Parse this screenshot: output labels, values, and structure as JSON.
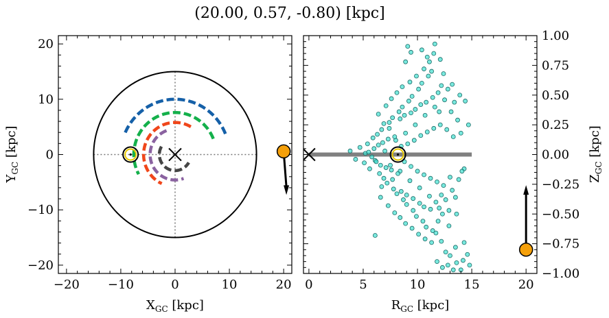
{
  "figure": {
    "title": "(20.00, 0.57, -0.80) [kpc]"
  },
  "chart_data": [
    {
      "type": "scatter",
      "panel": "left",
      "xlabel": "X",
      "xlabel_sub": "GC",
      "xlabel_unit": " [kpc]",
      "ylabel": "Y",
      "ylabel_sub": "GC",
      "ylabel_unit": " [kpc]",
      "xlim": [
        -21.5,
        21.5
      ],
      "ylim": [
        -21.5,
        21.5
      ],
      "xticks": [
        -20,
        -10,
        0,
        10,
        20
      ],
      "yticks": [
        -20,
        -10,
        0,
        10,
        20
      ],
      "xtick_labels": [
        "−20",
        "−10",
        "0",
        "10",
        "20"
      ],
      "ytick_labels": [
        "−20",
        "−10",
        "0",
        "10",
        "20"
      ],
      "galaxy_disk_radius": 15,
      "galactic_center": [
        0,
        0
      ],
      "sun_position": [
        -8.2,
        0
      ],
      "target": {
        "x": 20.0,
        "y": 0.57,
        "color": "#f5a00a"
      },
      "target_arrow": {
        "from": [
          20.0,
          0.57
        ],
        "to": [
          20.5,
          -6.8
        ]
      },
      "spiral_arms": [
        {
          "color": "#1560a8",
          "radius": 10.0,
          "start_deg": 22,
          "end_deg": 158
        },
        {
          "color": "#14b04b",
          "radius": 7.6,
          "start_deg": 22,
          "end_deg": 208
        },
        {
          "color": "#f0461a",
          "radius": 5.8,
          "start_deg": 60,
          "end_deg": 245
        },
        {
          "color": "#8a62a0",
          "radius": 4.6,
          "start_deg": 110,
          "end_deg": 290
        },
        {
          "color": "#454545",
          "radius": 2.9,
          "start_deg": 150,
          "end_deg": 330
        }
      ]
    },
    {
      "type": "scatter",
      "panel": "right",
      "xlabel": "R",
      "xlabel_sub": "GC",
      "xlabel_unit": " [kpc]",
      "ylabel": "Z",
      "ylabel_sub": "GC",
      "ylabel_unit": " [kpc]",
      "xlim": [
        -0.5,
        21
      ],
      "ylim": [
        -1.0,
        1.0
      ],
      "xticks": [
        0,
        5,
        10,
        15,
        20
      ],
      "yticks": [
        -1.0,
        -0.75,
        -0.5,
        -0.25,
        0.0,
        0.25,
        0.5,
        0.75,
        1.0
      ],
      "xtick_labels": [
        "0",
        "5",
        "10",
        "15",
        "20"
      ],
      "ytick_labels": [
        "−1.00",
        "−0.75",
        "−0.50",
        "−0.25",
        "0.00",
        "0.25",
        "0.50",
        "0.75",
        "1.00"
      ],
      "disk_line": {
        "x": [
          0,
          15
        ],
        "z": 0,
        "color": "#808080"
      },
      "galactic_center": [
        0,
        0
      ],
      "sun_position": [
        8.2,
        0
      ],
      "target": {
        "r": 20.0,
        "z": -0.8,
        "color": "#f5a00a"
      },
      "target_arrow": {
        "from": [
          20.0,
          -0.8
        ],
        "to": [
          20.0,
          -0.28
        ]
      },
      "star_color": "#40e0d0",
      "stars": [
        [
          3.8,
          0.03
        ],
        [
          4.3,
          -0.04
        ],
        [
          4.7,
          0.06
        ],
        [
          5.1,
          -0.07
        ],
        [
          5.4,
          0.09
        ],
        [
          5.6,
          -0.12
        ],
        [
          5.9,
          0.14
        ],
        [
          6.1,
          -0.05
        ],
        [
          6.3,
          0.17
        ],
        [
          6.5,
          -0.16
        ],
        [
          6.7,
          0.21
        ],
        [
          6.9,
          -0.2
        ],
        [
          7.0,
          0.03
        ],
        [
          7.2,
          -0.24
        ],
        [
          7.4,
          0.27
        ],
        [
          7.5,
          -0.09
        ],
        [
          7.7,
          0.31
        ],
        [
          7.8,
          -0.29
        ],
        [
          8.0,
          0.12
        ],
        [
          8.1,
          -0.33
        ],
        [
          8.3,
          0.36
        ],
        [
          8.4,
          -0.14
        ],
        [
          8.6,
          0.4
        ],
        [
          8.7,
          -0.38
        ],
        [
          8.9,
          0.18
        ],
        [
          9.0,
          -0.42
        ],
        [
          9.2,
          0.45
        ],
        [
          9.3,
          -0.22
        ],
        [
          9.5,
          0.49
        ],
        [
          9.6,
          -0.47
        ],
        [
          9.8,
          0.25
        ],
        [
          9.9,
          -0.52
        ],
        [
          10.1,
          0.55
        ],
        [
          10.2,
          -0.28
        ],
        [
          10.4,
          0.6
        ],
        [
          10.5,
          -0.56
        ],
        [
          10.7,
          0.33
        ],
        [
          10.8,
          -0.61
        ],
        [
          11.0,
          0.66
        ],
        [
          11.1,
          -0.35
        ],
        [
          11.3,
          0.7
        ],
        [
          11.4,
          -0.64
        ],
        [
          11.6,
          0.4
        ],
        [
          11.7,
          -0.66
        ],
        [
          11.9,
          0.52
        ],
        [
          12.0,
          -0.45
        ],
        [
          12.2,
          0.58
        ],
        [
          12.3,
          -0.5
        ],
        [
          12.5,
          0.46
        ],
        [
          12.6,
          -0.38
        ],
        [
          12.8,
          0.55
        ],
        [
          12.9,
          -0.47
        ],
        [
          13.1,
          0.36
        ],
        [
          13.2,
          -0.3
        ],
        [
          13.4,
          0.44
        ],
        [
          13.5,
          -0.36
        ],
        [
          13.7,
          0.29
        ],
        [
          13.8,
          -0.21
        ],
        [
          14.0,
          0.18
        ],
        [
          14.3,
          -0.12
        ],
        [
          5.2,
          0.01
        ],
        [
          5.5,
          0.02
        ],
        [
          5.8,
          -0.02
        ],
        [
          6.0,
          0.05
        ],
        [
          6.2,
          -0.06
        ],
        [
          6.4,
          0.08
        ],
        [
          6.6,
          -0.09
        ],
        [
          6.8,
          0.1
        ],
        [
          7.1,
          -0.11
        ],
        [
          7.3,
          0.13
        ],
        [
          7.6,
          -0.13
        ],
        [
          7.9,
          0.15
        ],
        [
          8.2,
          -0.16
        ],
        [
          8.5,
          0.07
        ],
        [
          8.8,
          -0.06
        ],
        [
          9.1,
          0.09
        ],
        [
          9.4,
          -0.1
        ],
        [
          9.7,
          0.12
        ],
        [
          10.0,
          -0.14
        ],
        [
          10.3,
          0.16
        ],
        [
          10.6,
          -0.17
        ],
        [
          10.9,
          0.19
        ],
        [
          11.2,
          -0.2
        ],
        [
          11.5,
          0.22
        ],
        [
          11.8,
          -0.23
        ],
        [
          12.1,
          0.25
        ],
        [
          12.4,
          -0.26
        ],
        [
          12.7,
          0.21
        ],
        [
          13.0,
          -0.19
        ],
        [
          13.3,
          0.15
        ],
        [
          6.4,
          0.34
        ],
        [
          7.1,
          0.41
        ],
        [
          7.6,
          0.47
        ],
        [
          8.1,
          0.52
        ],
        [
          8.6,
          0.57
        ],
        [
          9.3,
          0.61
        ],
        [
          9.9,
          0.66
        ],
        [
          10.6,
          0.72
        ],
        [
          11.1,
          0.78
        ],
        [
          11.5,
          0.85
        ],
        [
          6.6,
          -0.36
        ],
        [
          7.3,
          -0.43
        ],
        [
          7.9,
          -0.49
        ],
        [
          8.4,
          -0.53
        ],
        [
          8.9,
          -0.58
        ],
        [
          9.5,
          -0.62
        ],
        [
          10.1,
          -0.67
        ],
        [
          10.7,
          -0.71
        ],
        [
          11.3,
          -0.74
        ],
        [
          11.9,
          -0.56
        ],
        [
          9.1,
          0.91
        ],
        [
          9.4,
          0.86
        ],
        [
          10.4,
          0.88
        ],
        [
          11.6,
          0.93
        ],
        [
          12.1,
          0.8
        ],
        [
          8.9,
          0.78
        ],
        [
          10.9,
          0.82
        ],
        [
          12.4,
          0.68
        ],
        [
          13.2,
          0.59
        ],
        [
          13.9,
          0.5
        ],
        [
          14.4,
          0.45
        ],
        [
          14.7,
          0.25
        ],
        [
          14.1,
          -0.14
        ],
        [
          13.6,
          -0.5
        ],
        [
          12.9,
          -0.6
        ],
        [
          12.2,
          -0.73
        ],
        [
          6.1,
          -0.68
        ],
        [
          12.6,
          -0.82
        ],
        [
          13.0,
          -0.85
        ],
        [
          13.6,
          -0.91
        ],
        [
          14.2,
          -0.89
        ],
        [
          14.6,
          -0.84
        ],
        [
          12.3,
          -0.95
        ],
        [
          13.3,
          -0.97
        ],
        [
          14.0,
          -0.97
        ],
        [
          14.8,
          -0.93
        ],
        [
          13.5,
          -0.78
        ],
        [
          14.3,
          -0.74
        ],
        [
          11.8,
          -0.9
        ],
        [
          12.8,
          -0.93
        ],
        [
          8.4,
          0.3
        ],
        [
          8.8,
          0.33
        ],
        [
          9.4,
          0.35
        ],
        [
          9.8,
          0.38
        ],
        [
          10.3,
          0.42
        ],
        [
          10.8,
          0.44
        ],
        [
          11.4,
          0.48
        ],
        [
          12.0,
          0.36
        ],
        [
          8.5,
          -0.31
        ],
        [
          9.0,
          -0.34
        ],
        [
          9.6,
          -0.37
        ],
        [
          10.2,
          -0.41
        ],
        [
          10.6,
          -0.44
        ],
        [
          11.2,
          -0.46
        ],
        [
          11.7,
          -0.4
        ],
        [
          12.2,
          -0.34
        ],
        [
          7.4,
          0.22
        ],
        [
          7.7,
          -0.21
        ],
        [
          6.9,
          0.26
        ],
        [
          6.7,
          -0.27
        ]
      ]
    }
  ]
}
